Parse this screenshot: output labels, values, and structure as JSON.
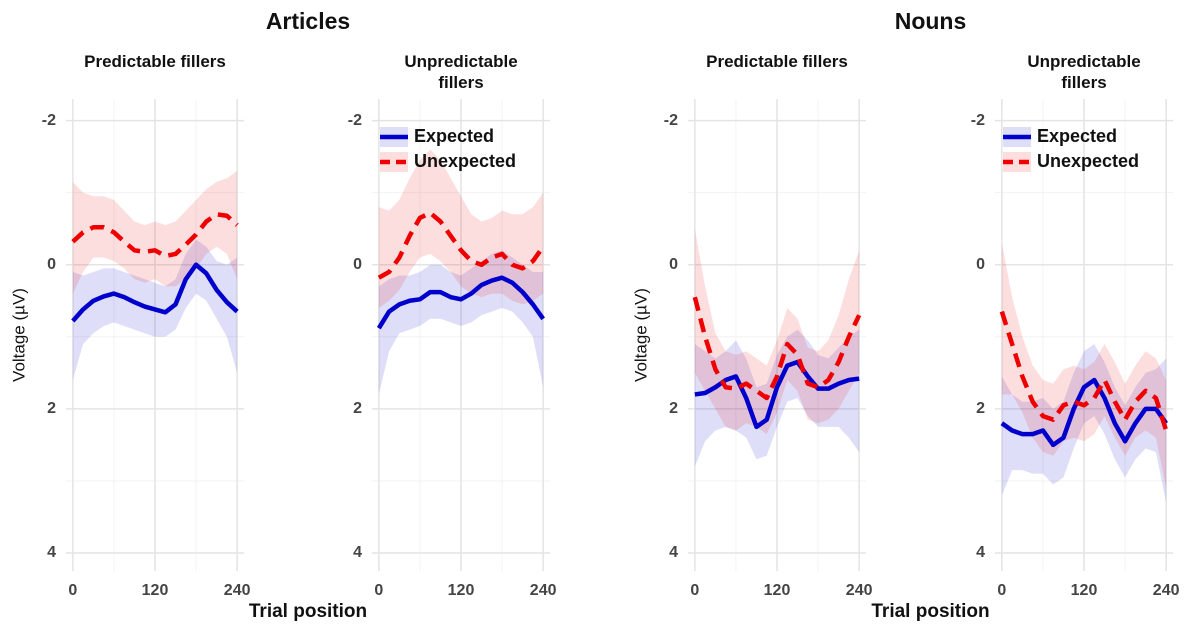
{
  "groups": [
    {
      "title": "Articles",
      "x_label": "Trial position",
      "y_label": "Voltage (µV)"
    },
    {
      "title": "Nouns",
      "x_label": "Trial position",
      "y_label": "Voltage (µV)"
    }
  ],
  "chart_data": [
    {
      "type": "line",
      "title": "Predictable fillers",
      "x": [
        0,
        15,
        30,
        45,
        60,
        75,
        90,
        105,
        120,
        135,
        150,
        165,
        180,
        195,
        210,
        225,
        240
      ],
      "xlim": [
        -10,
        250
      ],
      "xticks": [
        0,
        120,
        240
      ],
      "x_minor_grid": [
        60,
        180
      ],
      "ylim": [
        -2.3,
        4.25
      ],
      "y_reversed": true,
      "yticks": [
        -2,
        0,
        2,
        4
      ],
      "y_minor_grid": [
        -1,
        1,
        3
      ],
      "grid": true,
      "series": [
        {
          "color": "#0000cc",
          "linestyle": "solid",
          "values": [
            0.78,
            0.62,
            0.5,
            0.44,
            0.4,
            0.45,
            0.52,
            0.58,
            0.62,
            0.66,
            0.55,
            0.2,
            0.0,
            0.12,
            0.35,
            0.52,
            0.65
          ],
          "ci_low": [
            0.1,
            0.15,
            0.1,
            0.05,
            0.05,
            0.1,
            0.15,
            0.2,
            0.25,
            0.3,
            0.2,
            -0.15,
            -0.35,
            -0.25,
            -0.05,
            0.0,
            -0.1
          ],
          "ci_high": [
            1.6,
            1.1,
            0.95,
            0.85,
            0.8,
            0.85,
            0.9,
            0.95,
            1.0,
            1.0,
            0.9,
            0.6,
            0.4,
            0.5,
            0.75,
            1.0,
            1.5
          ]
        },
        {
          "color": "#ee0000",
          "linestyle": "dashed",
          "values": [
            -0.32,
            -0.45,
            -0.52,
            -0.52,
            -0.45,
            -0.32,
            -0.2,
            -0.18,
            -0.2,
            -0.12,
            -0.15,
            -0.28,
            -0.42,
            -0.6,
            -0.7,
            -0.68,
            -0.55
          ],
          "ci_low": [
            -1.15,
            -1.0,
            -0.95,
            -0.95,
            -0.9,
            -0.75,
            -0.6,
            -0.55,
            -0.6,
            -0.55,
            -0.6,
            -0.75,
            -0.9,
            -1.05,
            -1.15,
            -1.2,
            -1.3
          ],
          "ci_high": [
            0.4,
            0.1,
            -0.1,
            -0.1,
            -0.05,
            0.05,
            0.2,
            0.25,
            0.2,
            0.3,
            0.3,
            0.2,
            0.05,
            -0.15,
            -0.25,
            -0.15,
            0.2
          ]
        }
      ]
    },
    {
      "type": "line",
      "title": "Unpredictable fillers",
      "legend": "top-right",
      "x": [
        0,
        15,
        30,
        45,
        60,
        75,
        90,
        105,
        120,
        135,
        150,
        165,
        180,
        195,
        210,
        225,
        240
      ],
      "xlim": [
        -10,
        250
      ],
      "xticks": [
        0,
        120,
        240
      ],
      "x_minor_grid": [
        60,
        180
      ],
      "ylim": [
        -2.3,
        4.25
      ],
      "y_reversed": true,
      "yticks": [
        -2,
        0,
        2,
        4
      ],
      "y_minor_grid": [
        -1,
        1,
        3
      ],
      "grid": true,
      "series": [
        {
          "name": "Expected",
          "color": "#0000cc",
          "linestyle": "solid",
          "values": [
            0.88,
            0.65,
            0.55,
            0.5,
            0.48,
            0.38,
            0.38,
            0.45,
            0.48,
            0.4,
            0.28,
            0.22,
            0.18,
            0.25,
            0.38,
            0.55,
            0.75
          ],
          "ci_low": [
            0.3,
            0.2,
            0.15,
            0.15,
            0.1,
            0.0,
            0.0,
            0.1,
            0.15,
            0.05,
            -0.05,
            -0.15,
            -0.2,
            -0.1,
            0.0,
            0.1,
            0.1
          ],
          "ci_high": [
            1.8,
            1.2,
            0.95,
            0.9,
            0.85,
            0.75,
            0.75,
            0.8,
            0.85,
            0.8,
            0.7,
            0.65,
            0.6,
            0.65,
            0.8,
            1.0,
            1.7
          ]
        },
        {
          "name": "Unexpected",
          "color": "#ee0000",
          "linestyle": "dashed",
          "values": [
            0.18,
            0.1,
            -0.1,
            -0.4,
            -0.65,
            -0.72,
            -0.6,
            -0.4,
            -0.2,
            -0.05,
            0.0,
            -0.1,
            -0.15,
            0.0,
            0.05,
            -0.05,
            -0.25
          ],
          "ci_low": [
            -0.8,
            -0.75,
            -0.9,
            -1.2,
            -1.45,
            -1.6,
            -1.45,
            -1.2,
            -0.95,
            -0.7,
            -0.6,
            -0.65,
            -0.75,
            -0.7,
            -0.7,
            -0.8,
            -1.0
          ],
          "ci_high": [
            0.6,
            0.5,
            0.35,
            0.1,
            -0.1,
            -0.15,
            -0.05,
            0.1,
            0.3,
            0.4,
            0.45,
            0.4,
            0.4,
            0.5,
            0.55,
            0.5,
            0.4
          ]
        }
      ]
    },
    {
      "type": "line",
      "title": "Predictable fillers",
      "x": [
        0,
        15,
        30,
        45,
        60,
        75,
        90,
        105,
        120,
        135,
        150,
        165,
        180,
        195,
        210,
        225,
        240
      ],
      "xlim": [
        -10,
        250
      ],
      "xticks": [
        0,
        120,
        240
      ],
      "x_minor_grid": [
        60,
        180
      ],
      "ylim": [
        -2.3,
        4.25
      ],
      "y_reversed": true,
      "yticks": [
        -2,
        0,
        2,
        4
      ],
      "y_minor_grid": [
        -1,
        1,
        3
      ],
      "grid": true,
      "series": [
        {
          "color": "#0000cc",
          "linestyle": "solid",
          "values": [
            1.8,
            1.78,
            1.7,
            1.6,
            1.55,
            1.85,
            2.25,
            2.15,
            1.7,
            1.4,
            1.35,
            1.55,
            1.72,
            1.72,
            1.65,
            1.6,
            1.58
          ],
          "ci_low": [
            1.1,
            1.2,
            1.3,
            1.2,
            1.05,
            1.3,
            1.7,
            1.65,
            1.25,
            1.0,
            0.9,
            1.05,
            1.25,
            1.3,
            1.15,
            1.0,
            0.9
          ],
          "ci_high": [
            2.8,
            2.45,
            2.3,
            2.25,
            2.3,
            2.4,
            2.7,
            2.65,
            2.25,
            1.9,
            1.85,
            2.1,
            2.25,
            2.25,
            2.25,
            2.4,
            2.6
          ]
        },
        {
          "color": "#ee0000",
          "linestyle": "dashed",
          "values": [
            0.45,
            1.0,
            1.45,
            1.7,
            1.72,
            1.65,
            1.75,
            1.85,
            1.55,
            1.1,
            1.25,
            1.65,
            1.7,
            1.6,
            1.35,
            1.0,
            0.7
          ],
          "ci_low": [
            -0.5,
            0.3,
            0.95,
            1.2,
            1.25,
            1.2,
            1.3,
            1.4,
            1.05,
            0.6,
            0.75,
            1.15,
            1.2,
            1.05,
            0.7,
            0.2,
            -0.2
          ],
          "ci_high": [
            1.5,
            1.75,
            2.0,
            2.25,
            2.3,
            2.2,
            2.25,
            2.35,
            2.05,
            1.6,
            1.75,
            2.15,
            2.2,
            2.15,
            2.0,
            1.75,
            1.5
          ]
        }
      ]
    },
    {
      "type": "line",
      "title": "Unpredictable fillers",
      "legend": "top-right",
      "x": [
        0,
        15,
        30,
        45,
        60,
        75,
        90,
        105,
        120,
        135,
        150,
        165,
        180,
        195,
        210,
        225,
        240
      ],
      "xlim": [
        -10,
        250
      ],
      "xticks": [
        0,
        120,
        240
      ],
      "x_minor_grid": [
        60,
        180
      ],
      "ylim": [
        -2.3,
        4.25
      ],
      "y_reversed": true,
      "yticks": [
        -2,
        0,
        2,
        4
      ],
      "y_minor_grid": [
        -1,
        1,
        3
      ],
      "grid": true,
      "series": [
        {
          "name": "Expected",
          "color": "#0000cc",
          "linestyle": "solid",
          "values": [
            2.2,
            2.3,
            2.35,
            2.35,
            2.3,
            2.5,
            2.4,
            2.0,
            1.7,
            1.6,
            1.85,
            2.2,
            2.45,
            2.2,
            2.0,
            2.0,
            2.2
          ],
          "ci_low": [
            1.55,
            1.8,
            1.9,
            1.9,
            1.85,
            2.0,
            1.9,
            1.5,
            1.2,
            1.1,
            1.35,
            1.7,
            1.95,
            1.7,
            1.5,
            1.45,
            1.3
          ],
          "ci_high": [
            3.2,
            2.85,
            2.85,
            2.9,
            2.9,
            3.05,
            2.95,
            2.55,
            2.2,
            2.1,
            2.35,
            2.7,
            2.95,
            2.7,
            2.55,
            2.6,
            3.3
          ]
        },
        {
          "name": "Unexpected",
          "color": "#ee0000",
          "linestyle": "dashed",
          "values": [
            0.65,
            1.1,
            1.55,
            1.9,
            2.1,
            2.15,
            1.95,
            1.9,
            1.95,
            1.85,
            1.6,
            1.9,
            2.15,
            1.9,
            1.75,
            1.85,
            2.3
          ],
          "ci_low": [
            -0.3,
            0.45,
            1.0,
            1.4,
            1.6,
            1.65,
            1.45,
            1.4,
            1.45,
            1.35,
            1.1,
            1.35,
            1.65,
            1.4,
            1.2,
            1.3,
            1.6
          ],
          "ci_high": [
            1.8,
            1.8,
            2.05,
            2.4,
            2.6,
            2.65,
            2.45,
            2.4,
            2.45,
            2.35,
            2.1,
            2.4,
            2.65,
            2.4,
            2.3,
            2.4,
            3.1
          ]
        }
      ]
    }
  ]
}
